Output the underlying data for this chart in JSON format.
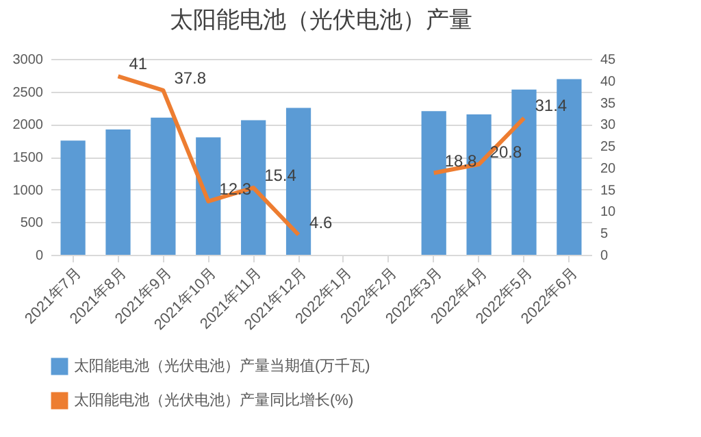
{
  "chart_data": {
    "type": "bar",
    "title": "太阳能电池（光伏电池）产量",
    "categories": [
      "2021年7月",
      "2021年8月",
      "2021年9月",
      "2021年10月",
      "2021年11月",
      "2021年12月",
      "2022年1月",
      "2022年2月",
      "2022年3月",
      "2022年4月",
      "2022年5月",
      "2022年6月"
    ],
    "series": [
      {
        "name": "太阳能电池（光伏电池）产量当期值(万千瓦)",
        "color": "#5b9bd5",
        "values": [
          1750,
          1920,
          2100,
          1800,
          2060,
          2250,
          null,
          null,
          2200,
          2150,
          2530,
          2690
        ]
      },
      {
        "name": "太阳能电池（光伏电池）产量同比增长(%)",
        "type": "line",
        "axis": "y2",
        "color": "#ed7d31",
        "values": [
          null,
          41,
          37.8,
          12.3,
          15.4,
          4.6,
          null,
          null,
          18.8,
          20.8,
          31.4,
          null
        ],
        "value_labels": [
          null,
          "41",
          "37.8",
          "12.3",
          "15.4",
          "4.6",
          null,
          null,
          "18.8",
          "20.8",
          "31.4",
          null
        ]
      }
    ],
    "ylim": [
      0,
      3000
    ],
    "yticks": [
      0,
      500,
      1000,
      1500,
      2000,
      2500,
      3000
    ],
    "y2lim": [
      0,
      45
    ],
    "y2ticks": [
      0,
      5,
      10,
      15,
      20,
      25,
      30,
      35,
      40,
      45
    ],
    "grid": "y",
    "legend": "bottom"
  }
}
